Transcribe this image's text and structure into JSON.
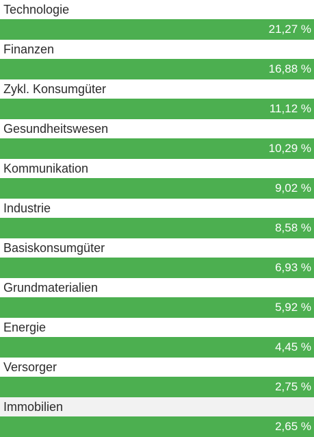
{
  "sectors": [
    {
      "name": "Technologie",
      "value": "21,27 %"
    },
    {
      "name": "Finanzen",
      "value": "16,88 %"
    },
    {
      "name": "Zykl. Konsumgüter",
      "value": "11,12 %"
    },
    {
      "name": "Gesundheitswesen",
      "value": "10,29 %"
    },
    {
      "name": "Kommunikation",
      "value": "9,02 %"
    },
    {
      "name": "Industrie",
      "value": "8,58 %"
    },
    {
      "name": "Basiskonsumgüter",
      "value": "6,93 %"
    },
    {
      "name": "Grundmaterialien",
      "value": "5,92 %"
    },
    {
      "name": "Energie",
      "value": "4,45 %"
    },
    {
      "name": "Versorger",
      "value": "2,75 %"
    },
    {
      "name": "Immobilien",
      "value": "2,65 %"
    }
  ],
  "colors": {
    "bar": "#4caf50",
    "bar_text": "#ffffff",
    "label_text": "#2b2b2b",
    "hover_label_bg": "#f2f2f2"
  }
}
